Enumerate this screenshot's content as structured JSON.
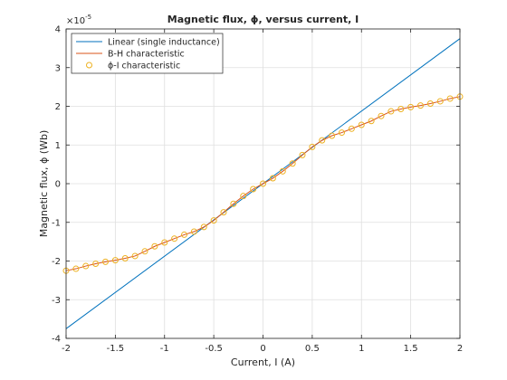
{
  "chart_data": {
    "type": "line",
    "title": "Magnetic flux, ϕ, versus current, I",
    "xlabel": "Current, I (A)",
    "ylabel": "Magnetic flux, ϕ (Wb)",
    "y_exponent_label": "×10",
    "y_exponent_power": "-5",
    "xlim": [
      -2,
      2
    ],
    "ylim": [
      -4,
      4
    ],
    "y_scale_factor": 1e-05,
    "grid": true,
    "legend_position": "top-left",
    "xticks": [
      -2,
      -1.5,
      -1,
      -0.5,
      0,
      0.5,
      1,
      1.5,
      2
    ],
    "xtick_labels": [
      "-2",
      "-1.5",
      "-1",
      "-0.5",
      "0",
      "0.5",
      "1",
      "1.5",
      "2"
    ],
    "yticks": [
      -4,
      -3,
      -2,
      -1,
      0,
      1,
      2,
      3,
      4
    ],
    "ytick_labels": [
      "-4",
      "-3",
      "-2",
      "-1",
      "0",
      "1",
      "2",
      "3",
      "4"
    ],
    "series": [
      {
        "name": "Linear (single inductance)",
        "style": "line",
        "color": "#0072BD",
        "x": [
          -2,
          2
        ],
        "y": [
          -3.75,
          3.75
        ]
      },
      {
        "name": "B-H characteristic",
        "style": "line",
        "color": "#D95319",
        "x": [
          -2.0,
          -1.9,
          -1.8,
          -1.7,
          -1.6,
          -1.5,
          -1.4,
          -1.3,
          -1.2,
          -1.1,
          -1.0,
          -0.9,
          -0.8,
          -0.7,
          -0.6,
          -0.5,
          -0.4,
          -0.3,
          -0.2,
          -0.1,
          0.0,
          0.1,
          0.2,
          0.3,
          0.4,
          0.5,
          0.6,
          0.7,
          0.8,
          0.9,
          1.0,
          1.1,
          1.2,
          1.3,
          1.4,
          1.5,
          1.6,
          1.7,
          1.8,
          1.9,
          2.0
        ],
        "y": [
          -2.25,
          -2.2,
          -2.13,
          -2.07,
          -2.02,
          -1.98,
          -1.93,
          -1.87,
          -1.75,
          -1.62,
          -1.52,
          -1.42,
          -1.32,
          -1.24,
          -1.12,
          -0.95,
          -0.74,
          -0.52,
          -0.32,
          -0.14,
          0.0,
          0.14,
          0.32,
          0.52,
          0.74,
          0.95,
          1.12,
          1.24,
          1.32,
          1.42,
          1.52,
          1.62,
          1.75,
          1.87,
          1.93,
          1.98,
          2.02,
          2.07,
          2.13,
          2.2,
          2.25
        ]
      },
      {
        "name": "ϕ-I characteristic",
        "style": "markers",
        "marker": "circle",
        "color": "#EDB120",
        "x": [
          -2.0,
          -1.9,
          -1.8,
          -1.7,
          -1.6,
          -1.5,
          -1.4,
          -1.3,
          -1.2,
          -1.1,
          -1.0,
          -0.9,
          -0.8,
          -0.7,
          -0.6,
          -0.5,
          -0.4,
          -0.3,
          -0.2,
          -0.1,
          0.0,
          0.1,
          0.2,
          0.3,
          0.4,
          0.5,
          0.6,
          0.7,
          0.8,
          0.9,
          1.0,
          1.1,
          1.2,
          1.3,
          1.4,
          1.5,
          1.6,
          1.7,
          1.8,
          1.9,
          2.0
        ],
        "y": [
          -2.25,
          -2.2,
          -2.13,
          -2.07,
          -2.02,
          -1.98,
          -1.93,
          -1.87,
          -1.75,
          -1.62,
          -1.52,
          -1.42,
          -1.32,
          -1.24,
          -1.12,
          -0.95,
          -0.74,
          -0.52,
          -0.32,
          -0.14,
          0.0,
          0.14,
          0.32,
          0.52,
          0.74,
          0.95,
          1.12,
          1.24,
          1.32,
          1.42,
          1.52,
          1.62,
          1.75,
          1.87,
          1.93,
          1.98,
          2.02,
          2.07,
          2.13,
          2.2,
          2.25
        ]
      }
    ]
  }
}
